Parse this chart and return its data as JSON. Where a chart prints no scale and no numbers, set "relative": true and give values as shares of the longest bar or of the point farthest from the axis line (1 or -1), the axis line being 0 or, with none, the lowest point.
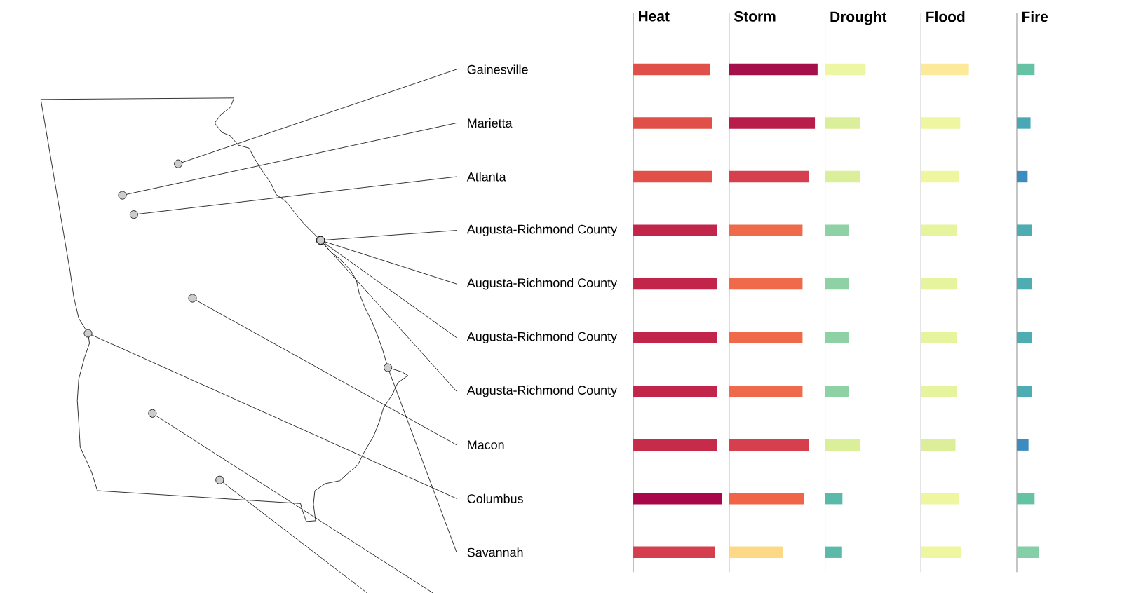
{
  "chart_data": [
    {
      "type": "bar",
      "orientation": "horizontal",
      "relative": true,
      "title": "Heat",
      "categories": [
        "Gainesville",
        "Marietta",
        "Atlanta",
        "Augusta-Richmond County",
        "Augusta-Richmond County",
        "Augusta-Richmond County",
        "Augusta-Richmond County",
        "Macon",
        "Columbus",
        "Savannah"
      ],
      "values": [
        0.87,
        0.89,
        0.89,
        0.95,
        0.95,
        0.95,
        0.95,
        0.95,
        1,
        0.92
      ],
      "colors": [
        "#e05048",
        "#e05048",
        "#e05048",
        "#c2254a",
        "#c2254a",
        "#c2254a",
        "#c2254a",
        "#c62b4a",
        "#a8084a",
        "#d53e4f"
      ]
    },
    {
      "type": "bar",
      "orientation": "horizontal",
      "relative": true,
      "tick_labels": false,
      "title": "Storm",
      "categories": [
        null,
        null,
        null,
        null,
        null,
        null,
        null,
        null,
        null,
        null
      ],
      "values": [
        1,
        0.97,
        0.9,
        0.83,
        0.83,
        0.83,
        0.83,
        0.9,
        0.85,
        0.61
      ],
      "colors": [
        "#a6104a",
        "#b81c4a",
        "#d6404e",
        "#ee6a4b",
        "#ee6a4b",
        "#ee6a4b",
        "#ee6a4b",
        "#d6404e",
        "#f06548",
        "#fed985"
      ]
    },
    {
      "type": "bar",
      "orientation": "horizontal",
      "relative": true,
      "tick_labels": false,
      "title": "Drought",
      "categories": [
        null,
        null,
        null,
        null,
        null,
        null,
        null,
        null,
        null,
        null
      ],
      "values": [
        1,
        0.87,
        0.87,
        0.58,
        0.58,
        0.58,
        0.58,
        0.87,
        0.43,
        0.42
      ],
      "colors": [
        "#edf7a3",
        "#dbef9a",
        "#dbef9a",
        "#8ed1a4",
        "#8ed1a4",
        "#8ed1a4",
        "#8ed1a4",
        "#dbef9a",
        "#5bb9a9",
        "#5bb9a9"
      ]
    },
    {
      "type": "bar",
      "orientation": "horizontal",
      "relative": true,
      "tick_labels": false,
      "title": "Flood",
      "categories": [
        null,
        null,
        null,
        null,
        null,
        null,
        null,
        null,
        null,
        null
      ],
      "values": [
        1,
        0.82,
        0.79,
        0.75,
        0.75,
        0.75,
        0.75,
        0.72,
        0.79,
        0.83
      ],
      "colors": [
        "#fde99a",
        "#eef7a0",
        "#eef7a0",
        "#e6f49d",
        "#e6f49d",
        "#e6f49d",
        "#e6f49d",
        "#dcee99",
        "#eef7a0",
        "#eef7a0"
      ]
    },
    {
      "type": "bar",
      "orientation": "horizontal",
      "relative": true,
      "tick_labels": false,
      "title": "Fire",
      "categories": [
        null,
        null,
        null,
        null,
        null,
        null,
        null,
        null,
        null,
        null
      ],
      "values": [
        0.79,
        0.61,
        0.48,
        0.67,
        0.67,
        0.67,
        0.67,
        0.52,
        0.79,
        1
      ],
      "colors": [
        "#66c2a5",
        "#4aa7b5",
        "#3d8bbf",
        "#4eadb2",
        "#4eadb2",
        "#4eadb2",
        "#4eadb2",
        "#3d8bbf",
        "#66c2a5",
        "#84cfa5"
      ]
    }
  ]
}
